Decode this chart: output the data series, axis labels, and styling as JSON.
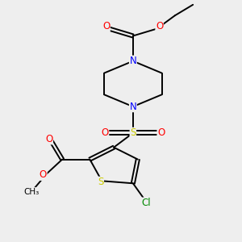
{
  "bg_color": "#eeeeee",
  "bond_color": "#000000",
  "N_color": "#0000ff",
  "O_color": "#ff0000",
  "S_color": "#cccc00",
  "Cl_color": "#008800",
  "figsize": [
    3.0,
    3.0
  ],
  "dpi": 100,
  "xlim": [
    0,
    10
  ],
  "ylim": [
    0,
    10
  ]
}
